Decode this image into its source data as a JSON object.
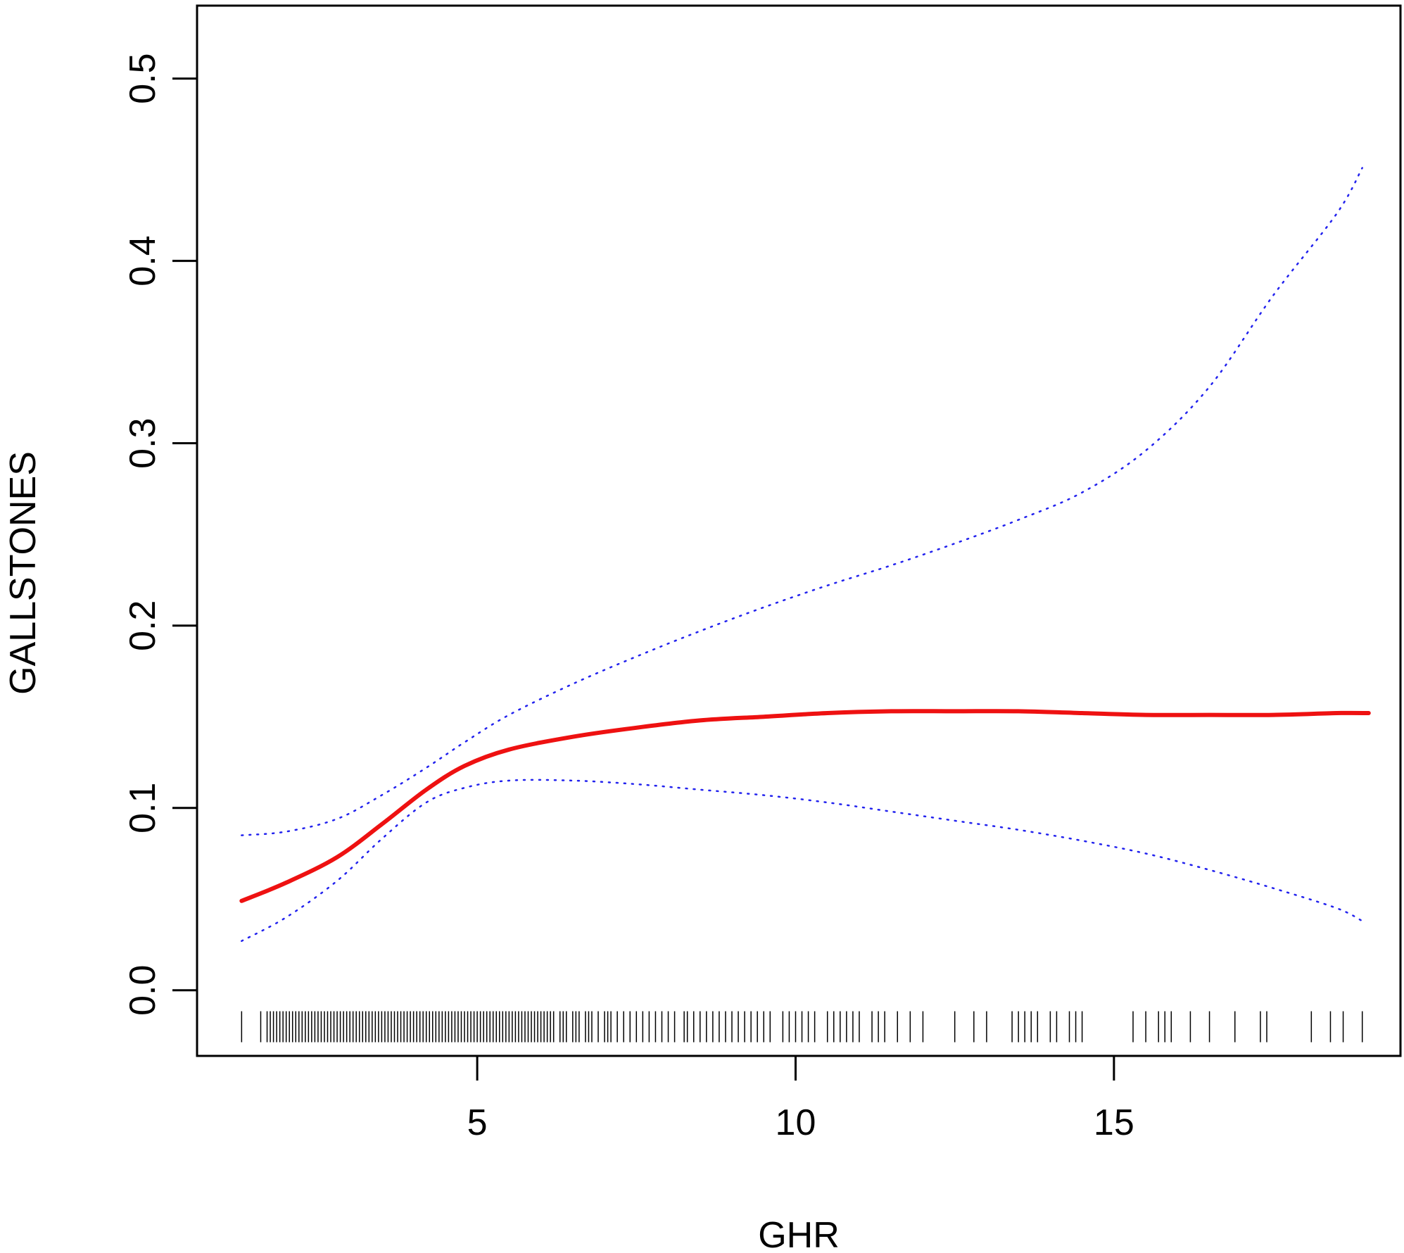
{
  "chart_data": {
    "type": "line",
    "title": "",
    "xlabel": "GHR",
    "ylabel": "GALLSTONES",
    "xlim": [
      0.6,
      19.5
    ],
    "ylim": [
      -0.036,
      0.54
    ],
    "x_ticks": [
      5,
      10,
      15
    ],
    "y_ticks": [
      0.0,
      0.1,
      0.2,
      0.3,
      0.4,
      0.5
    ],
    "x_tick_labels": [
      "5",
      "10",
      "15"
    ],
    "y_tick_labels": [
      "0.0",
      "0.1",
      "0.2",
      "0.3",
      "0.4",
      "0.5"
    ],
    "grid": false,
    "legend": "none",
    "colors": {
      "fit": "#ee1111",
      "ci": "#2222ee",
      "rug": "#000000"
    },
    "series": [
      {
        "role": "fit",
        "x": [
          1.3,
          2.0,
          2.8,
          3.5,
          4.2,
          4.8,
          5.5,
          6.5,
          7.5,
          8.5,
          9.5,
          10.5,
          11.5,
          12.5,
          13.5,
          14.5,
          15.5,
          16.5,
          17.5,
          18.5,
          19.0
        ],
        "y": [
          0.049,
          0.059,
          0.073,
          0.091,
          0.11,
          0.123,
          0.132,
          0.139,
          0.144,
          0.148,
          0.15,
          0.152,
          0.153,
          0.153,
          0.153,
          0.152,
          0.151,
          0.151,
          0.151,
          0.152,
          0.152
        ]
      },
      {
        "role": "ci-upper",
        "x": [
          1.3,
          2.0,
          2.8,
          3.5,
          4.2,
          4.8,
          5.5,
          6.5,
          7.5,
          8.5,
          9.5,
          10.5,
          11.5,
          12.5,
          13.5,
          14.5,
          15.5,
          16.5,
          17.5,
          18.5,
          18.9
        ],
        "y": [
          0.085,
          0.087,
          0.094,
          0.107,
          0.122,
          0.136,
          0.151,
          0.168,
          0.183,
          0.197,
          0.21,
          0.222,
          0.233,
          0.245,
          0.258,
          0.273,
          0.296,
          0.331,
          0.381,
          0.426,
          0.451
        ]
      },
      {
        "role": "ci-lower",
        "x": [
          1.3,
          2.0,
          2.8,
          3.5,
          4.2,
          4.8,
          5.5,
          6.5,
          7.5,
          8.5,
          9.5,
          10.5,
          11.5,
          12.5,
          13.5,
          14.5,
          15.5,
          16.5,
          17.5,
          18.5,
          18.9
        ],
        "y": [
          0.027,
          0.04,
          0.06,
          0.083,
          0.103,
          0.111,
          0.115,
          0.115,
          0.113,
          0.11,
          0.107,
          0.103,
          0.098,
          0.093,
          0.088,
          0.082,
          0.075,
          0.066,
          0.056,
          0.045,
          0.038
        ]
      }
    ],
    "rug": {
      "y_level": -0.02,
      "x": [
        1.3,
        1.6,
        1.7,
        1.75,
        1.8,
        1.85,
        1.9,
        1.95,
        2.0,
        2.05,
        2.1,
        2.15,
        2.2,
        2.25,
        2.3,
        2.35,
        2.4,
        2.45,
        2.5,
        2.55,
        2.6,
        2.65,
        2.7,
        2.75,
        2.8,
        2.85,
        2.9,
        2.95,
        3.0,
        3.05,
        3.1,
        3.15,
        3.2,
        3.25,
        3.3,
        3.35,
        3.4,
        3.45,
        3.5,
        3.55,
        3.6,
        3.65,
        3.7,
        3.75,
        3.8,
        3.85,
        3.9,
        3.95,
        4.0,
        4.05,
        4.1,
        4.15,
        4.2,
        4.25,
        4.3,
        4.35,
        4.4,
        4.45,
        4.5,
        4.55,
        4.6,
        4.65,
        4.7,
        4.75,
        4.8,
        4.85,
        4.9,
        4.95,
        5.0,
        5.05,
        5.1,
        5.15,
        5.2,
        5.25,
        5.3,
        5.35,
        5.4,
        5.45,
        5.5,
        5.55,
        5.6,
        5.65,
        5.7,
        5.75,
        5.8,
        5.85,
        5.9,
        5.95,
        6.0,
        6.05,
        6.1,
        6.15,
        6.2,
        6.3,
        6.35,
        6.4,
        6.5,
        6.55,
        6.6,
        6.7,
        6.75,
        6.8,
        6.9,
        7.0,
        7.05,
        7.1,
        7.2,
        7.3,
        7.4,
        7.5,
        7.6,
        7.7,
        7.8,
        7.9,
        8.0,
        8.1,
        8.25,
        8.3,
        8.4,
        8.5,
        8.6,
        8.7,
        8.8,
        8.9,
        9.0,
        9.1,
        9.2,
        9.3,
        9.4,
        9.5,
        9.6,
        9.8,
        9.9,
        10.0,
        10.1,
        10.2,
        10.3,
        10.5,
        10.6,
        10.7,
        10.8,
        10.9,
        11.0,
        11.2,
        11.3,
        11.4,
        11.6,
        11.8,
        12.0,
        12.5,
        12.8,
        13.0,
        13.4,
        13.5,
        13.6,
        13.7,
        13.8,
        14.0,
        14.1,
        14.3,
        14.4,
        14.5,
        15.3,
        15.5,
        15.7,
        15.8,
        15.9,
        16.2,
        16.5,
        16.9,
        17.3,
        17.4,
        18.1,
        18.4,
        18.6,
        18.9
      ]
    },
    "annotations": []
  }
}
